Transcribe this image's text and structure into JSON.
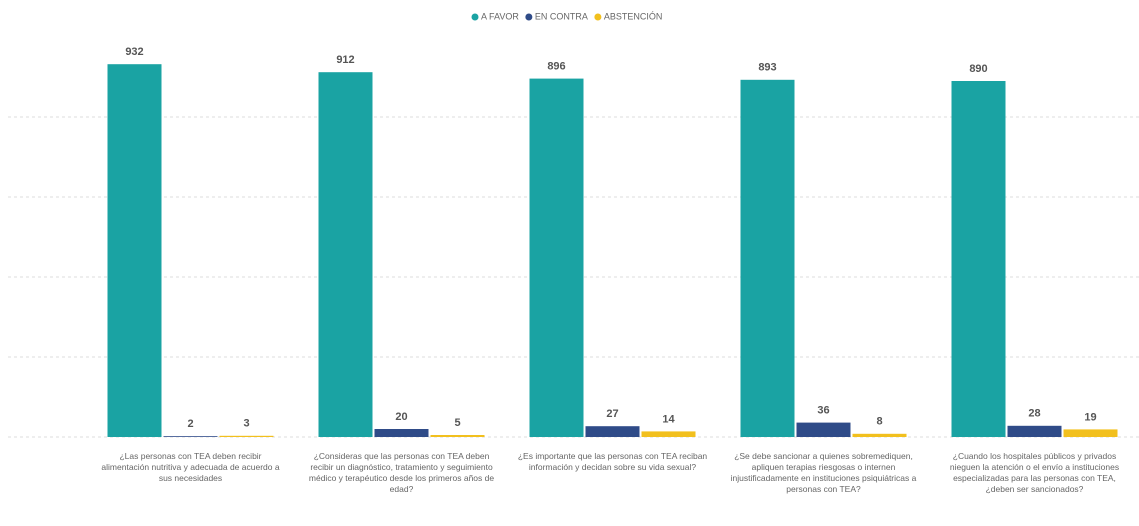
{
  "chart_data": {
    "type": "bar",
    "categories": [
      "¿Las personas con TEA deben recibir alimentación nutritiva y adecuada de acuerdo a sus necesidades",
      "¿Consideras que las personas con TEA deben recibir un diagnóstico, tratamiento y seguimiento médico y terapéutico desde los primeros años de edad?",
      "¿Es importante que las personas con TEA reciban información y decidan sobre su vida sexual?",
      "¿Se debe sancionar a quienes sobremediquen, apliquen terapias riesgosas o internen injustificadamente en instituciones psiquiátricas a personas con TEA?",
      "¿Cuando los hospitales públicos y privados nieguen la atención o el envío a instituciones especializadas para las personas con TEA, ¿deben ser sancionados?"
    ],
    "series": [
      {
        "name": "A FAVOR",
        "color": "#1aa3a3",
        "values": [
          932,
          912,
          896,
          893,
          890
        ]
      },
      {
        "name": "EN CONTRA",
        "color": "#2f4b88",
        "values": [
          2,
          20,
          27,
          36,
          28
        ]
      },
      {
        "name": "ABSTENCIÓN",
        "color": "#f2c01e",
        "values": [
          3,
          5,
          14,
          8,
          19
        ]
      }
    ],
    "ylim": [
      0,
      1000
    ],
    "yticks": [
      0,
      200,
      400,
      600,
      800
    ],
    "grid": true,
    "legend": "top"
  }
}
